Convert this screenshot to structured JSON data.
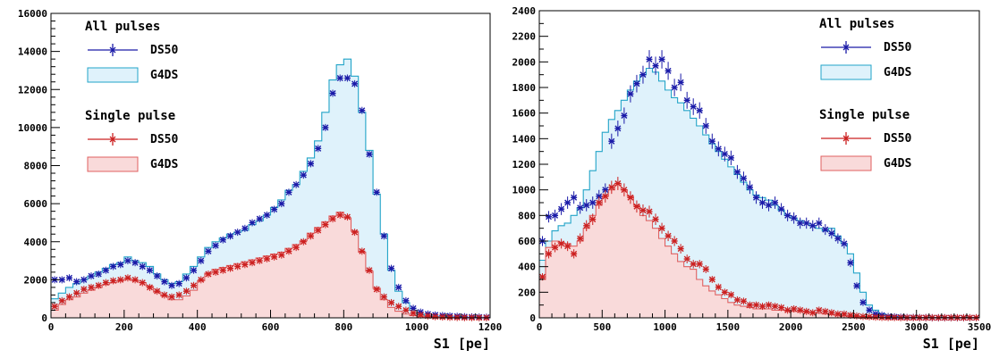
{
  "chart_data": [
    {
      "type": "histogram",
      "xlabel": "S1 [pe]",
      "ylabel": "",
      "xlim": [
        0,
        1200
      ],
      "ylim": [
        0,
        16000
      ],
      "x_ticks": [
        "0",
        "200",
        "400",
        "600",
        "800",
        "1000",
        "1200"
      ],
      "y_ticks": [
        "0",
        "2000",
        "4000",
        "6000",
        "8000",
        "10000",
        "12000",
        "14000",
        "16000"
      ],
      "legend": {
        "groups": [
          {
            "header": "All pulses",
            "entries": [
              {
                "label": "DS50",
                "kind": "points",
                "color": "#1a1aa8"
              },
              {
                "label": "G4DS",
                "kind": "filled",
                "line": "#22a4c8",
                "fill": "#dff2fb"
              }
            ]
          },
          {
            "header": "Single pulse",
            "entries": [
              {
                "label": "DS50",
                "kind": "points",
                "color": "#cc2020"
              },
              {
                "label": "G4DS",
                "kind": "filled",
                "line": "#e06060",
                "fill": "#f9dada"
              }
            ]
          }
        ]
      },
      "series": [
        {
          "name": "All pulses G4DS",
          "kind": "hist",
          "line": "#22a4c8",
          "fill": "#dff2fb",
          "bin_width": 20,
          "x_start": 0,
          "values": [
            1000,
            1300,
            1600,
            1800,
            2000,
            2200,
            2400,
            2600,
            2800,
            2900,
            3200,
            3000,
            2900,
            2700,
            2300,
            2000,
            1800,
            1900,
            2300,
            2700,
            3200,
            3700,
            4000,
            4200,
            4400,
            4500,
            4600,
            4900,
            5100,
            5400,
            5800,
            6200,
            6700,
            7000,
            7700,
            8400,
            9300,
            10800,
            12500,
            13300,
            13600,
            12700,
            10800,
            8800,
            6500,
            4400,
            2500,
            1400,
            800,
            400,
            200,
            100,
            80,
            60,
            40,
            30,
            20,
            15,
            10,
            8
          ]
        },
        {
          "name": "All pulses DS50",
          "kind": "points",
          "color": "#1a1aa8",
          "x_start": 10,
          "step": 20,
          "values": [
            2000,
            2000,
            2100,
            1900,
            2000,
            2200,
            2300,
            2500,
            2700,
            2800,
            3000,
            2900,
            2700,
            2500,
            2200,
            1900,
            1700,
            1800,
            2100,
            2500,
            3000,
            3500,
            3800,
            4100,
            4300,
            4500,
            4700,
            5000,
            5200,
            5400,
            5700,
            6000,
            6600,
            7000,
            7500,
            8100,
            8900,
            10000,
            11800,
            12600,
            12600,
            12300,
            10900,
            8600,
            6600,
            4300,
            2600,
            1600,
            900,
            500,
            300,
            200,
            150,
            120,
            100,
            80,
            60,
            50,
            40,
            30
          ]
        },
        {
          "name": "Single pulse G4DS",
          "kind": "hist",
          "line": "#e06060",
          "fill": "#f9dada",
          "bin_width": 20,
          "x_start": 0,
          "values": [
            400,
            700,
            950,
            1100,
            1300,
            1450,
            1600,
            1750,
            1850,
            1950,
            2050,
            1950,
            1850,
            1650,
            1350,
            1150,
            950,
            950,
            1150,
            1450,
            1950,
            2350,
            2550,
            2650,
            2750,
            2850,
            2950,
            3050,
            3150,
            3250,
            3350,
            3450,
            3650,
            3850,
            4050,
            4450,
            4750,
            5050,
            5350,
            5550,
            5250,
            4550,
            3450,
            2450,
            1550,
            950,
            550,
            350,
            200,
            120,
            80,
            50,
            30,
            20,
            15,
            10,
            8,
            5,
            3,
            2
          ]
        },
        {
          "name": "Single pulse DS50",
          "kind": "points",
          "color": "#cc2020",
          "x_start": 10,
          "step": 20,
          "values": [
            600,
            900,
            1100,
            1300,
            1500,
            1600,
            1700,
            1850,
            1950,
            2000,
            2100,
            2000,
            1850,
            1600,
            1400,
            1200,
            1100,
            1200,
            1400,
            1700,
            2000,
            2300,
            2400,
            2500,
            2600,
            2700,
            2800,
            2900,
            3000,
            3100,
            3200,
            3300,
            3500,
            3700,
            4000,
            4300,
            4600,
            4900,
            5200,
            5400,
            5300,
            4500,
            3500,
            2500,
            1500,
            1100,
            800,
            600,
            400,
            250,
            150,
            100,
            60,
            40,
            25,
            15,
            10,
            8,
            5,
            3
          ]
        }
      ]
    },
    {
      "type": "histogram",
      "xlabel": "S1 [pe]",
      "ylabel": "",
      "xlim": [
        0,
        3500
      ],
      "ylim": [
        0,
        2400
      ],
      "x_ticks": [
        "0",
        "500",
        "1000",
        "1500",
        "2000",
        "2500",
        "3000",
        "3500"
      ],
      "y_ticks": [
        "0",
        "200",
        "400",
        "600",
        "800",
        "1000",
        "1200",
        "1400",
        "1600",
        "1800",
        "2000",
        "2200",
        "2400"
      ],
      "legend": {
        "groups": [
          {
            "header": "All pulses",
            "entries": [
              {
                "label": "DS50",
                "kind": "points",
                "color": "#1a1aa8"
              },
              {
                "label": "G4DS",
                "kind": "filled",
                "line": "#22a4c8",
                "fill": "#dff2fb"
              }
            ]
          },
          {
            "header": "Single pulse",
            "entries": [
              {
                "label": "DS50",
                "kind": "points",
                "color": "#cc2020"
              },
              {
                "label": "G4DS",
                "kind": "filled",
                "line": "#e06060",
                "fill": "#f9dada"
              }
            ]
          }
        ]
      },
      "series": [
        {
          "name": "All pulses G4DS",
          "kind": "hist",
          "line": "#22a4c8",
          "fill": "#dff2fb",
          "bin_width": 50,
          "x_start": 0,
          "values": [
            450,
            600,
            680,
            720,
            740,
            800,
            860,
            1000,
            1150,
            1300,
            1450,
            1550,
            1620,
            1700,
            1780,
            1850,
            1900,
            1950,
            1920,
            1850,
            1780,
            1720,
            1680,
            1620,
            1560,
            1500,
            1430,
            1360,
            1300,
            1240,
            1180,
            1120,
            1060,
            1000,
            960,
            940,
            920,
            880,
            840,
            800,
            780,
            760,
            740,
            720,
            700,
            680,
            700,
            640,
            580,
            500,
            350,
            200,
            100,
            60,
            30,
            20,
            12,
            8,
            5,
            3,
            2,
            1,
            1,
            1,
            1,
            1,
            1,
            1,
            1,
            1
          ]
        },
        {
          "name": "All pulses DS50",
          "kind": "points",
          "color": "#1a1aa8",
          "x_start": 25,
          "step": 50,
          "values": [
            600,
            790,
            800,
            850,
            900,
            940,
            860,
            880,
            900,
            950,
            1000,
            1380,
            1480,
            1580,
            1750,
            1830,
            1900,
            2020,
            1970,
            2020,
            1930,
            1800,
            1840,
            1700,
            1650,
            1620,
            1500,
            1380,
            1320,
            1280,
            1250,
            1140,
            1090,
            1020,
            940,
            900,
            880,
            900,
            850,
            800,
            780,
            740,
            740,
            720,
            740,
            690,
            660,
            620,
            580,
            430,
            250,
            120,
            60,
            30,
            20,
            10,
            8,
            5,
            3,
            3,
            2,
            2,
            1,
            1,
            1,
            1,
            1,
            1,
            1,
            1
          ]
        },
        {
          "name": "Single pulse G4DS",
          "kind": "hist",
          "line": "#e06060",
          "fill": "#f9dada",
          "bin_width": 50,
          "x_start": 0,
          "values": [
            300,
            550,
            600,
            590,
            580,
            560,
            600,
            700,
            800,
            880,
            950,
            1000,
            1050,
            1000,
            950,
            880,
            800,
            760,
            700,
            620,
            560,
            500,
            440,
            400,
            380,
            300,
            250,
            210,
            180,
            150,
            120,
            100,
            90,
            80,
            70,
            70,
            70,
            60,
            60,
            55,
            50,
            50,
            45,
            40,
            35,
            30,
            25,
            20,
            15,
            10,
            8,
            5,
            3,
            2,
            1,
            1,
            1,
            1,
            1,
            1,
            1,
            1,
            1,
            1,
            1,
            1,
            1,
            1,
            1,
            1
          ]
        },
        {
          "name": "Single pulse DS50",
          "kind": "points",
          "color": "#cc2020",
          "x_start": 25,
          "step": 50,
          "values": [
            320,
            500,
            550,
            580,
            560,
            500,
            620,
            720,
            770,
            900,
            950,
            1020,
            1050,
            1000,
            940,
            870,
            840,
            830,
            770,
            700,
            640,
            600,
            540,
            460,
            420,
            420,
            380,
            300,
            240,
            200,
            180,
            140,
            130,
            100,
            100,
            90,
            100,
            90,
            80,
            60,
            70,
            60,
            50,
            40,
            60,
            50,
            40,
            30,
            30,
            20,
            15,
            10,
            8,
            5,
            3,
            2,
            2,
            1,
            1,
            1,
            1,
            1,
            1,
            1,
            1,
            1,
            1,
            1,
            1,
            1
          ]
        }
      ]
    }
  ]
}
